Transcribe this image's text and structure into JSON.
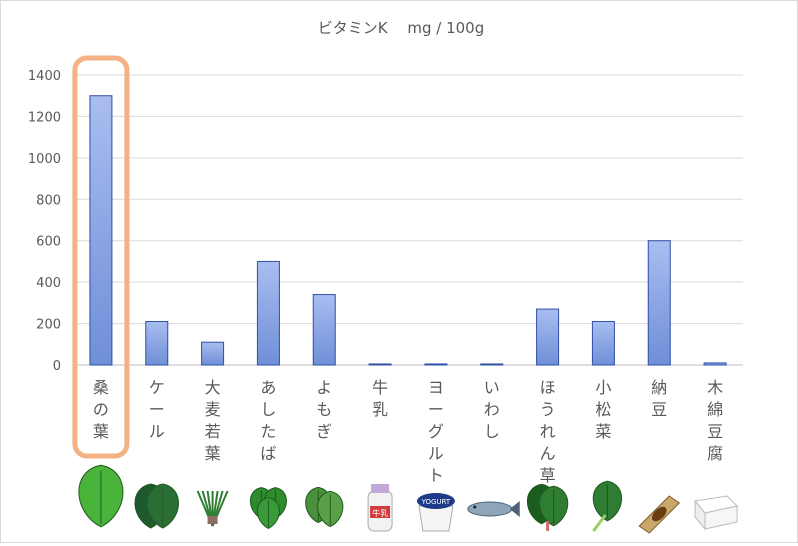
{
  "chart_data": {
    "type": "bar",
    "title": "ビタミンK　 mg / 100g",
    "xlabel": "",
    "ylabel": "",
    "ylim": [
      0,
      1400
    ],
    "yticks": [
      0,
      200,
      400,
      600,
      800,
      1000,
      1200,
      1400
    ],
    "grid": true,
    "legend": "none",
    "bar_color": "#6f8fd8",
    "bar_border": "#2f4fa8",
    "highlight_color": "#f4b183",
    "highlight_category": "桑の葉",
    "categories": [
      "桑の葉",
      "ケール",
      "大麦若葉",
      "あしたば",
      "よもぎ",
      "牛乳",
      "ヨーグルト",
      "いわし",
      "ほうれん草",
      "小松菜",
      "納豆",
      "木綿豆腐"
    ],
    "values": [
      1300,
      210,
      110,
      500,
      340,
      5,
      5,
      5,
      270,
      210,
      600,
      10
    ],
    "icons": [
      "mulberry-leaf-icon",
      "kale-icon",
      "barley-grass-icon",
      "ashitaba-icon",
      "yomogi-icon",
      "milk-bottle-icon",
      "yogurt-cup-icon",
      "sardine-icon",
      "spinach-icon",
      "komatsuna-icon",
      "natto-icon",
      "tofu-icon"
    ],
    "icon_labels": {
      "milk": "牛乳",
      "yogurt": "YOGURT"
    }
  }
}
